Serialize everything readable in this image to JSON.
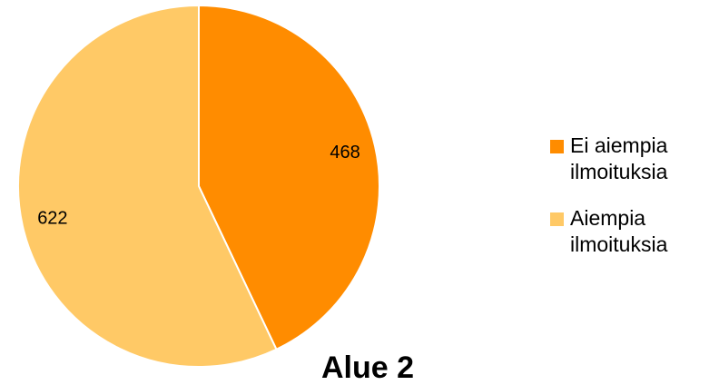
{
  "chart_data": {
    "type": "pie",
    "title": "Alue 2",
    "start_angle_deg": 0,
    "direction": "clockwise",
    "slices": [
      {
        "label": "Ei aiempia ilmoituksia",
        "value": 468,
        "color": "#FF8C00"
      },
      {
        "label": "Aiempia ilmoituksia",
        "value": 622,
        "color": "#FFC966"
      }
    ],
    "legend_position": "right",
    "data_labels": true
  }
}
